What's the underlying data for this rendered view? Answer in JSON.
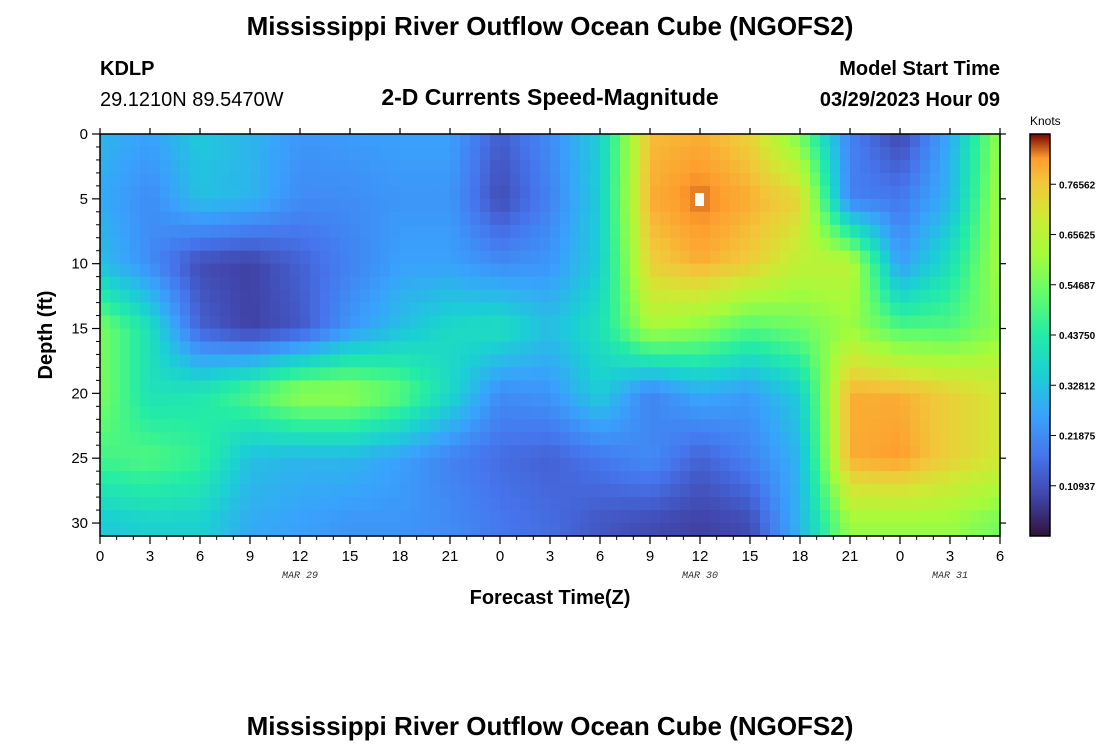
{
  "page": {
    "title": "Mississippi River Outflow Ocean Cube (NGOFS2)",
    "bottom_title": "Mississippi River Outflow Ocean Cube (NGOFS2)",
    "station": "KDLP",
    "location": "29.1210N  89.5470W",
    "subtitle": "2-D Currents Speed-Magnitude",
    "model_start_label": "Model Start Time",
    "model_start_value": "03/29/2023 Hour 09"
  },
  "chart_data": {
    "type": "heatmap",
    "title": "2-D Currents Speed-Magnitude",
    "xlabel": "Forecast Time(Z)",
    "ylabel": "Depth (ft)",
    "x_hours": [
      0,
      54
    ],
    "ylim": [
      0,
      31
    ],
    "y_inverted": true,
    "x_ticks": [
      "0",
      "3",
      "6",
      "9",
      "12",
      "15",
      "18",
      "21",
      "0",
      "3",
      "6",
      "9",
      "12",
      "15",
      "18",
      "21",
      "0",
      "3",
      "6"
    ],
    "y_ticks": [
      "0",
      "5",
      "10",
      "15",
      "20",
      "25",
      "30"
    ],
    "y_tick_values": [
      0,
      5,
      10,
      15,
      20,
      25,
      30
    ],
    "date_labels": [
      {
        "text": "MAR 29",
        "hour": 12
      },
      {
        "text": "MAR 30",
        "hour": 36
      },
      {
        "text": "MAR 31",
        "hour": 51
      }
    ],
    "colorbar": {
      "label": "Knots",
      "range": [
        0,
        0.875
      ],
      "ticks": [
        "0.10937",
        "0.21875",
        "0.32812",
        "0.43750",
        "0.54687",
        "0.65625",
        "0.76562"
      ],
      "tick_values": [
        0.10937,
        0.21875,
        0.32812,
        0.4375,
        0.54687,
        0.65625,
        0.76562
      ]
    },
    "grid_x_hours": [
      0,
      3,
      6,
      9,
      12,
      15,
      18,
      21,
      24,
      27,
      30,
      33,
      36,
      39,
      42,
      45,
      48,
      51,
      54
    ],
    "grid_depths_ft": [
      0,
      5,
      10,
      15,
      20,
      25,
      30
    ],
    "speed_knots": [
      [
        0.3,
        0.26,
        0.34,
        0.3,
        0.24,
        0.25,
        0.26,
        0.26,
        0.13,
        0.22,
        0.35,
        0.78,
        0.8,
        0.75,
        0.55,
        0.2,
        0.09,
        0.28,
        0.6
      ],
      [
        0.28,
        0.22,
        0.32,
        0.3,
        0.22,
        0.22,
        0.24,
        0.24,
        0.1,
        0.2,
        0.35,
        0.8,
        0.84,
        0.8,
        0.74,
        0.2,
        0.18,
        0.3,
        0.62
      ],
      [
        0.32,
        0.22,
        0.1,
        0.08,
        0.14,
        0.2,
        0.26,
        0.26,
        0.22,
        0.24,
        0.35,
        0.75,
        0.8,
        0.76,
        0.66,
        0.66,
        0.25,
        0.4,
        0.62
      ],
      [
        0.56,
        0.4,
        0.14,
        0.08,
        0.12,
        0.24,
        0.32,
        0.38,
        0.4,
        0.32,
        0.4,
        0.62,
        0.58,
        0.5,
        0.54,
        0.6,
        0.5,
        0.5,
        0.58
      ],
      [
        0.56,
        0.4,
        0.42,
        0.5,
        0.6,
        0.6,
        0.52,
        0.38,
        0.22,
        0.24,
        0.35,
        0.2,
        0.28,
        0.25,
        0.35,
        0.8,
        0.8,
        0.75,
        0.7
      ],
      [
        0.48,
        0.5,
        0.46,
        0.32,
        0.3,
        0.3,
        0.26,
        0.2,
        0.16,
        0.14,
        0.18,
        0.22,
        0.14,
        0.2,
        0.3,
        0.8,
        0.82,
        0.75,
        0.7
      ],
      [
        0.34,
        0.36,
        0.36,
        0.28,
        0.26,
        0.24,
        0.24,
        0.22,
        0.18,
        0.16,
        0.12,
        0.1,
        0.08,
        0.1,
        0.3,
        0.6,
        0.6,
        0.6,
        0.55
      ]
    ]
  }
}
